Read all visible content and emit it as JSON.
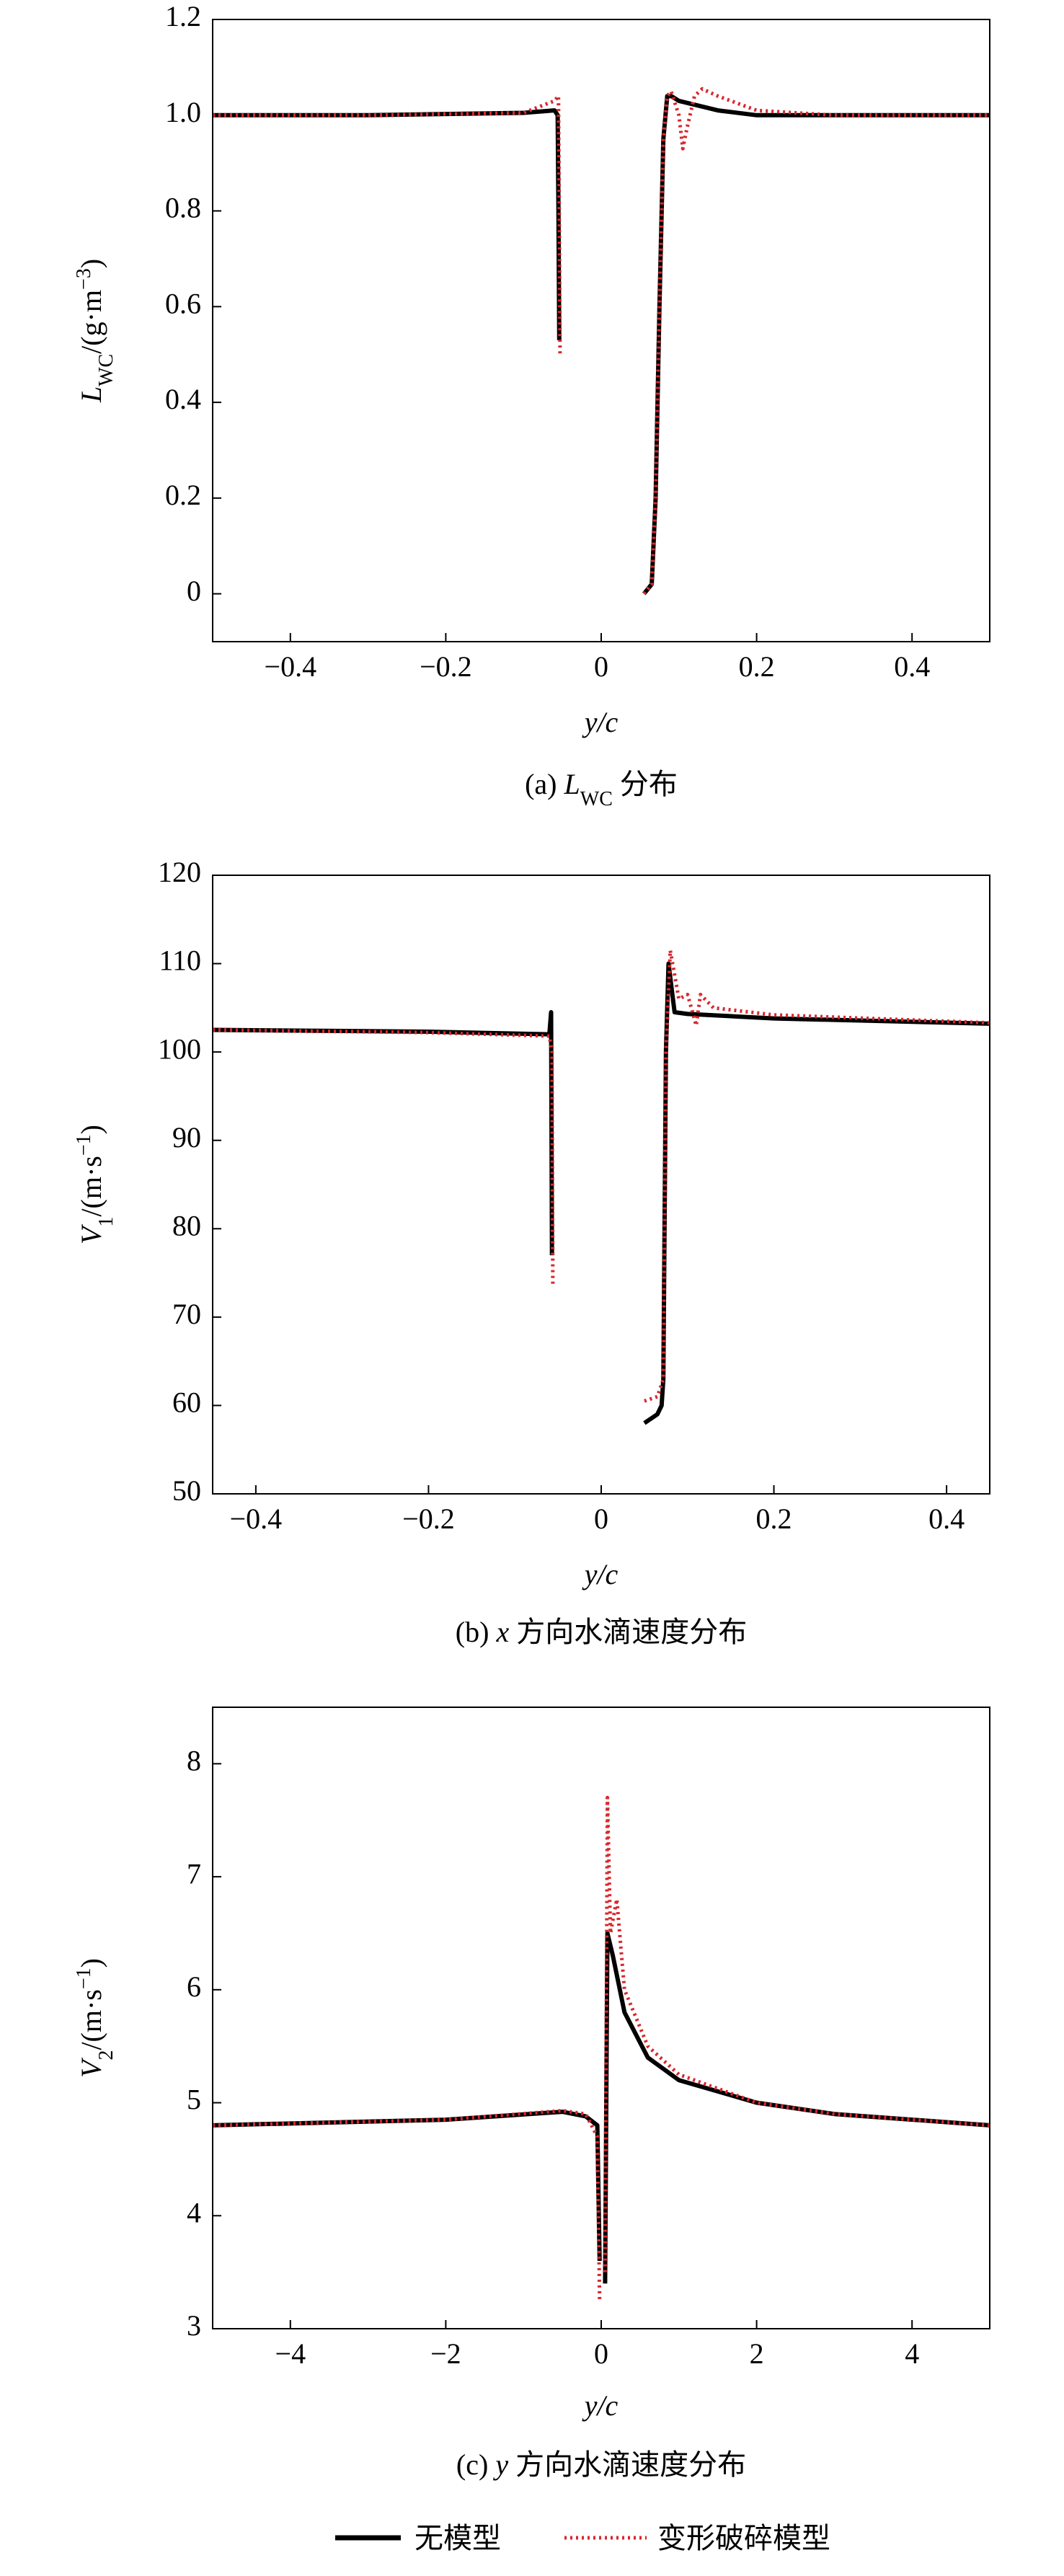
{
  "chart_data": [
    {
      "type": "line",
      "ylabel": [
        "L",
        "WC",
        "/(g·m",
        "−3",
        ")"
      ],
      "xlabel": "y/c",
      "caption": [
        "(a) ",
        "L",
        "WC",
        " 分布"
      ],
      "xlim": [
        -0.5,
        0.5
      ],
      "ylim": [
        -0.1,
        1.2
      ],
      "xticks": [
        {
          "value": -0.4,
          "label": "−0.4"
        },
        {
          "value": -0.2,
          "label": "−0.2"
        },
        0,
        0.2,
        0.4
      ],
      "yticks": [
        0,
        0.2,
        0.4,
        0.6,
        0.8,
        {
          "value": 1,
          "label": "1.0"
        },
        1.2
      ],
      "series": [
        {
          "name": "无模型",
          "color": "#000000",
          "style": "solid",
          "x": [
            -0.5,
            -0.3,
            -0.1,
            -0.06,
            -0.056,
            -0.055,
            -0.054,
            null,
            0.055,
            0.065,
            0.07,
            0.075,
            0.08,
            0.085,
            0.09,
            0.1,
            0.15,
            0.2,
            0.3,
            0.5
          ],
          "values": [
            1,
            1,
            1.005,
            1.01,
            1.0,
            0.8,
            0.53,
            null,
            0,
            0.02,
            0.2,
            0.6,
            0.95,
            1.04,
            1.04,
            1.03,
            1.01,
            1.0,
            1.0,
            1.0
          ]
        },
        {
          "name": "变形破碎模型",
          "color": "#d9272e",
          "style": "dotted",
          "x": [
            -0.5,
            -0.3,
            -0.1,
            -0.06,
            -0.055,
            -0.054,
            -0.053,
            null,
            0.055,
            0.065,
            0.07,
            0.075,
            0.08,
            0.085,
            0.09,
            0.1,
            0.105,
            0.11,
            0.12,
            0.13,
            0.15,
            0.2,
            0.3,
            0.5
          ],
          "values": [
            1,
            1,
            1.005,
            1.03,
            1.04,
            0.8,
            0.5,
            null,
            0,
            0.02,
            0.2,
            0.6,
            0.95,
            1.04,
            1.05,
            1.0,
            0.93,
            0.97,
            1.04,
            1.055,
            1.04,
            1.01,
            1.0,
            1.0
          ]
        }
      ]
    },
    {
      "type": "line",
      "ylabel": [
        "V",
        "1",
        "/(m·s",
        "−1",
        ")"
      ],
      "xlabel": "y/c",
      "caption": [
        "(b) ",
        "x",
        " 方向水滴速度分布"
      ],
      "xlim": [
        -0.45,
        0.45
      ],
      "ylim": [
        50,
        120
      ],
      "xticks": [
        {
          "value": -0.4,
          "label": "−0.4"
        },
        {
          "value": -0.2,
          "label": "−0.2"
        },
        0,
        0.2,
        0.4
      ],
      "yticks": [
        50,
        60,
        70,
        80,
        90,
        100,
        110,
        120
      ],
      "series": [
        {
          "name": "无模型",
          "color": "#000000",
          "style": "solid",
          "x": [
            -0.45,
            -0.2,
            -0.06,
            -0.058,
            -0.057,
            null,
            0.05,
            0.065,
            0.07,
            0.072,
            0.075,
            0.078,
            0.085,
            0.1,
            0.2,
            0.45
          ],
          "values": [
            102.5,
            102.3,
            102,
            104.5,
            77,
            null,
            58,
            59,
            60,
            63,
            100,
            110,
            104.5,
            104.3,
            103.8,
            103.2
          ]
        },
        {
          "name": "变形破碎模型",
          "color": "#d9272e",
          "style": "dotted",
          "x": [
            -0.45,
            -0.2,
            -0.06,
            -0.057,
            -0.056,
            null,
            0.05,
            0.065,
            0.072,
            0.075,
            0.08,
            0.09,
            0.1,
            0.11,
            0.115,
            0.13,
            0.2,
            0.45
          ],
          "values": [
            102.5,
            102.2,
            101.8,
            100,
            73.5,
            null,
            60.5,
            61,
            63,
            100,
            111.5,
            106,
            106.5,
            103,
            106.5,
            105,
            104.2,
            103.3
          ]
        }
      ]
    },
    {
      "type": "line",
      "ylabel": [
        "V",
        "2",
        "/(m·s",
        "−1",
        ")"
      ],
      "xlabel": "y/c",
      "caption": [
        "(c) ",
        "y",
        " 方向水滴速度分布"
      ],
      "xlim": [
        -5,
        5
      ],
      "ylim": [
        3,
        8.5
      ],
      "xticks": [
        {
          "value": -4,
          "label": "−4"
        },
        {
          "value": -2,
          "label": "−2"
        },
        0,
        2,
        4
      ],
      "yticks": [
        3,
        4,
        5,
        6,
        7,
        8
      ],
      "series": [
        {
          "name": "无模型",
          "color": "#000000",
          "style": "solid",
          "x": [
            -5,
            -2,
            -0.5,
            -0.2,
            -0.05,
            -0.02,
            null,
            0.05,
            0.08,
            0.15,
            0.3,
            0.6,
            1,
            2,
            3,
            5
          ],
          "values": [
            4.8,
            4.85,
            4.92,
            4.88,
            4.8,
            3.6,
            null,
            3.4,
            6.5,
            6.3,
            5.8,
            5.4,
            5.2,
            5.0,
            4.9,
            4.8
          ]
        },
        {
          "name": "变形破碎模型",
          "color": "#d9272e",
          "style": "dotted",
          "x": [
            -5,
            -2,
            -0.5,
            -0.2,
            -0.05,
            -0.02,
            null,
            0.05,
            0.08,
            0.12,
            0.2,
            0.3,
            0.6,
            1,
            2,
            3,
            5
          ],
          "values": [
            4.8,
            4.85,
            4.93,
            4.9,
            4.7,
            3.25,
            null,
            3.5,
            7.7,
            6.5,
            6.8,
            6.0,
            5.5,
            5.25,
            5.0,
            4.9,
            4.8
          ]
        }
      ]
    }
  ]
}
